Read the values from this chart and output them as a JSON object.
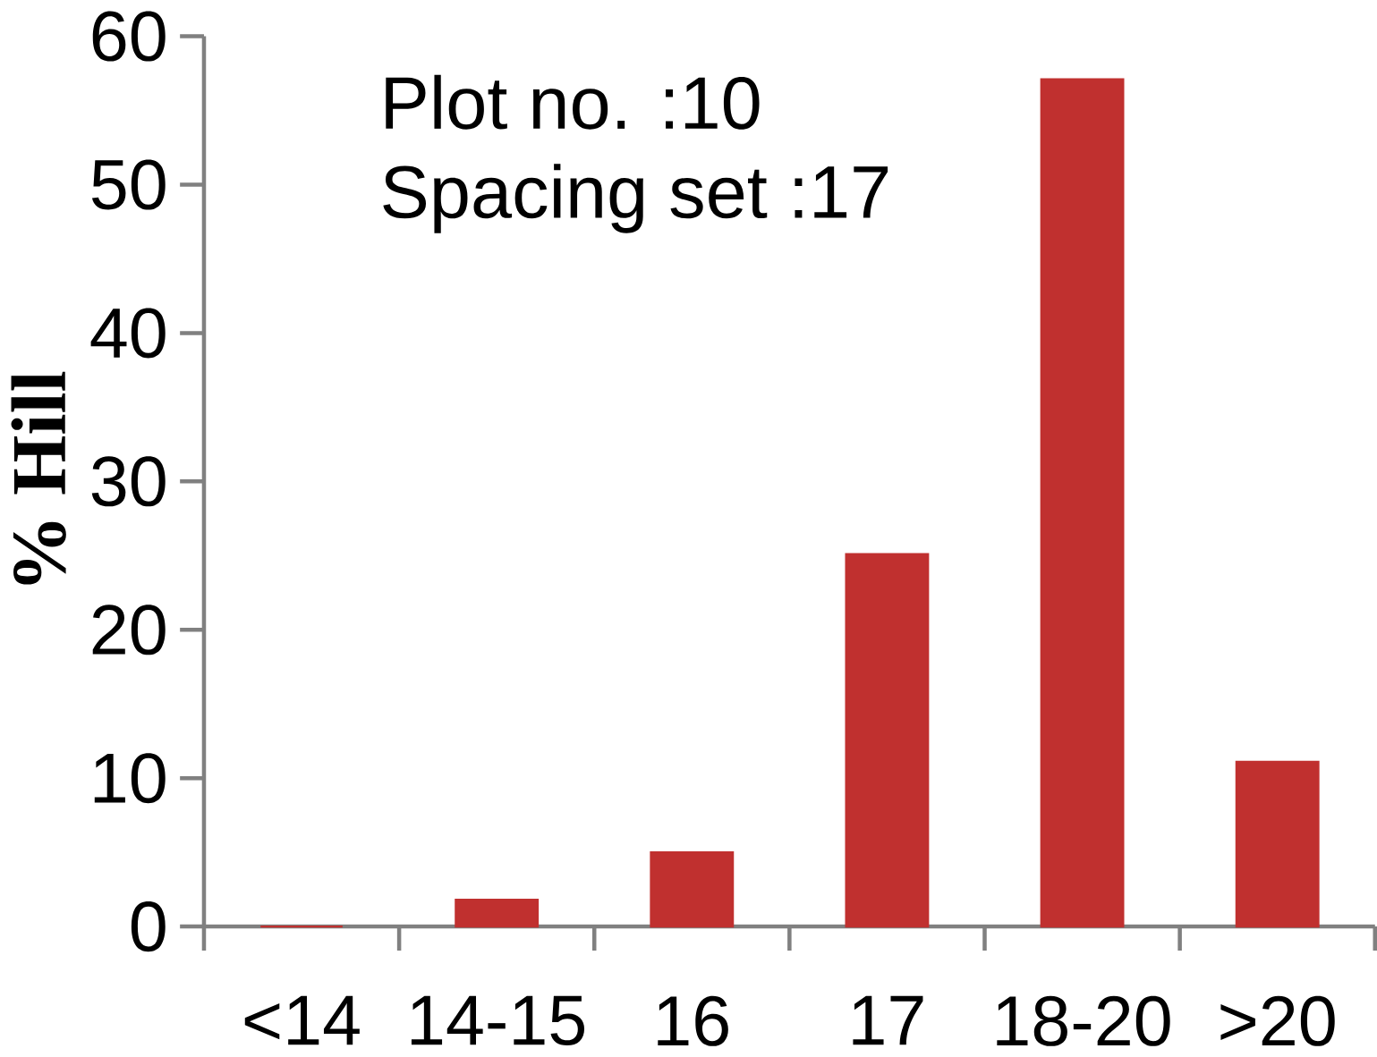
{
  "chart_data": {
    "type": "bar",
    "ylabel": "% Hill",
    "categories": [
      "<14",
      "14-15",
      "16",
      "17",
      "18-20",
      ">20"
    ],
    "values": [
      0,
      1.8,
      5.0,
      25.1,
      57.1,
      11.1
    ],
    "color": "#c0302f",
    "ylim": [
      0,
      60
    ],
    "yticks": [
      0,
      10,
      20,
      30,
      40,
      50,
      60
    ],
    "annotations": [
      "Plot no. :10",
      "Spacing set :17"
    ]
  }
}
